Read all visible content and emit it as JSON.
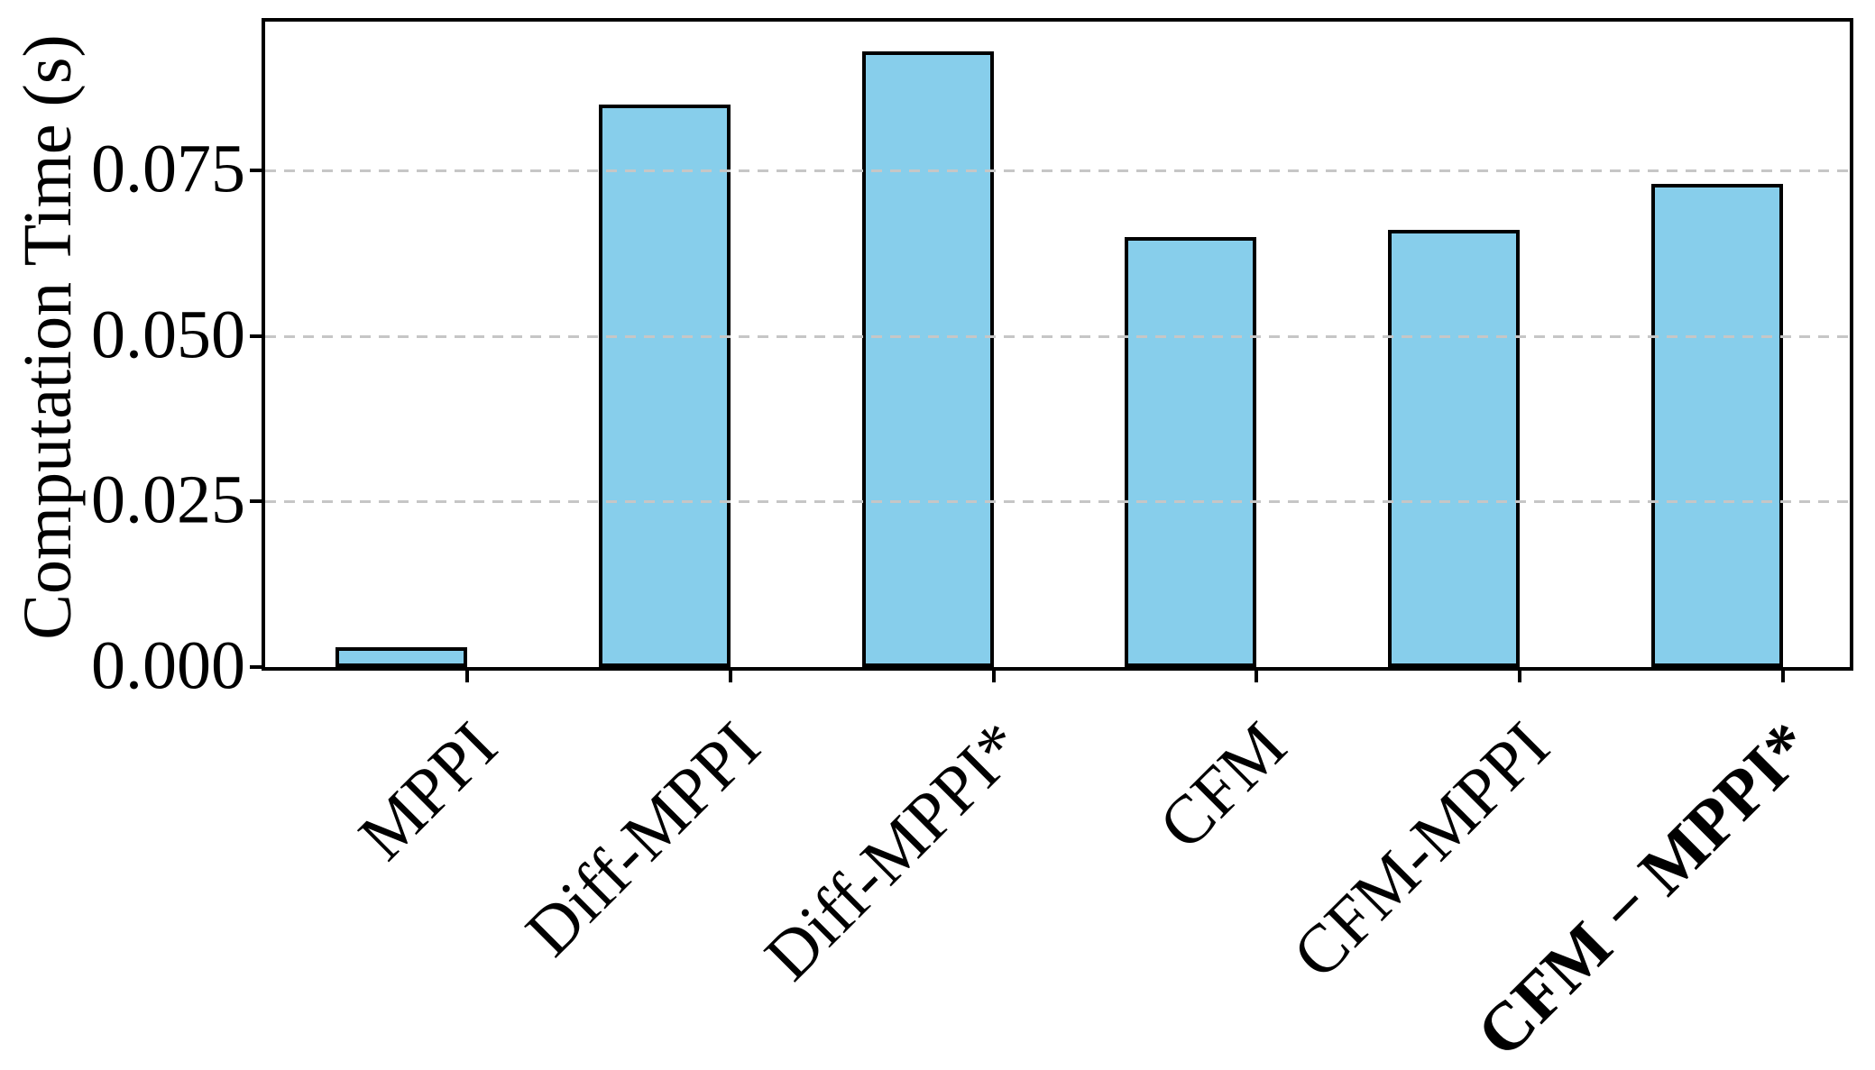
{
  "chart_data": {
    "type": "bar",
    "title": "",
    "ylabel": "Computation Time (s)",
    "xlabel": "",
    "categories": [
      "MPPI",
      "Diff-MPPI",
      "Diff-MPPI*",
      "CFM",
      "CFM-MPPI",
      "CFM − MPPI*"
    ],
    "values": [
      0.003,
      0.085,
      0.093,
      0.065,
      0.066,
      0.073
    ],
    "bold_flags": [
      false,
      false,
      false,
      false,
      false,
      true
    ],
    "series_unit": "seconds",
    "ylim": [
      0,
      0.0975
    ],
    "yticks": [
      0,
      0.025,
      0.05,
      0.075
    ],
    "ytick_labels": [
      "0.000",
      "0.025",
      "0.050",
      "0.075"
    ],
    "xtick_rotation_deg": 45,
    "grid": "horizontal-dashed-above-bars",
    "legend": "none",
    "colors": {
      "bar_fill": "#87CEEB",
      "bar_edge": "#000000",
      "grid": "#c6c6c6",
      "axis": "#000000",
      "text": "#000000",
      "background": "#ffffff"
    }
  }
}
